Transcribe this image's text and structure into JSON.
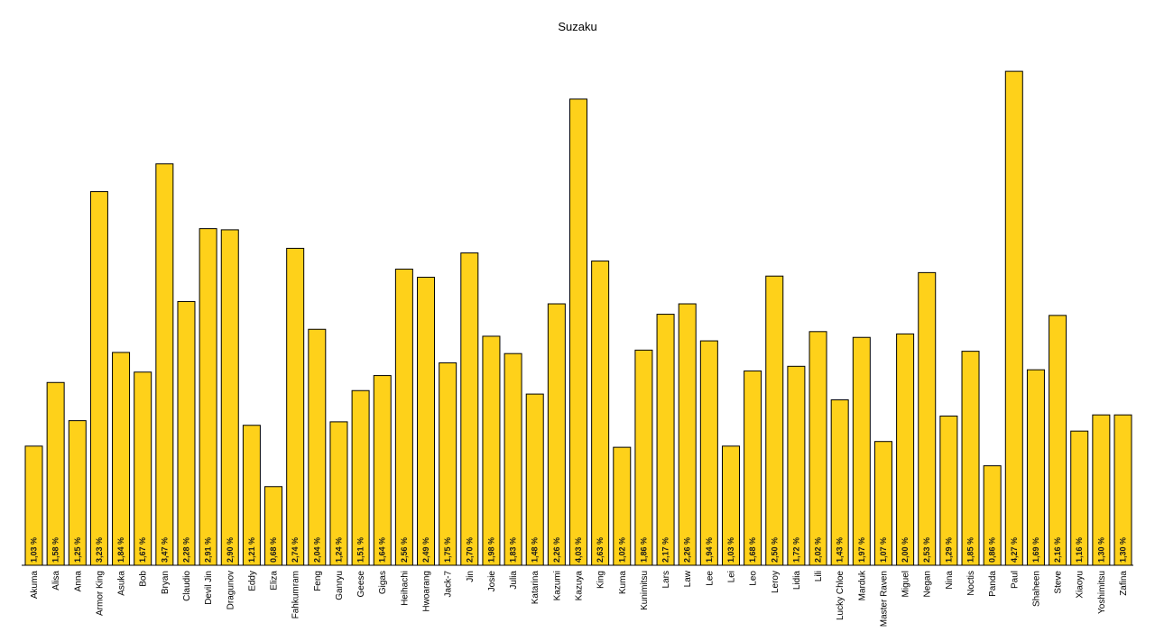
{
  "chart_data": {
    "type": "bar",
    "title": "Suzaku",
    "xlabel": "",
    "ylabel": "",
    "ylim": [
      0,
      4.38
    ],
    "grid": false,
    "bar_color": "#fed11a",
    "bar_edge_color": "#000000",
    "categories": [
      "Akuma",
      "Alisa",
      "Anna",
      "Armor King",
      "Asuka",
      "Bob",
      "Bryan",
      "Claudio",
      "Devil Jin",
      "Dragunov",
      "Eddy",
      "Eliza",
      "Fahkumram",
      "Feng",
      "Ganryu",
      "Geese",
      "Gigas",
      "Heihachi",
      "Hwoarang",
      "Jack-7",
      "Jin",
      "Josie",
      "Julia",
      "Katarina",
      "Kazumi",
      "Kazuya",
      "King",
      "Kuma",
      "Kunimitsu",
      "Lars",
      "Law",
      "Lee",
      "Lei",
      "Leo",
      "Leroy",
      "Lidia",
      "Lili",
      "Lucky Chloe",
      "Marduk",
      "Master Raven",
      "Miguel",
      "Negan",
      "Nina",
      "Noctis",
      "Panda",
      "Paul",
      "Shaheen",
      "Steve",
      "Xiaoyu",
      "Yoshimitsu",
      "Zafina"
    ],
    "values": [
      1.03,
      1.58,
      1.25,
      3.23,
      1.84,
      1.67,
      3.47,
      2.28,
      2.91,
      2.9,
      1.21,
      0.68,
      2.74,
      2.04,
      1.24,
      1.51,
      1.64,
      2.56,
      2.49,
      1.75,
      2.7,
      1.98,
      1.83,
      1.48,
      2.26,
      4.03,
      2.63,
      1.02,
      1.86,
      2.17,
      2.26,
      1.94,
      1.03,
      1.68,
      2.5,
      1.72,
      2.02,
      1.43,
      1.97,
      1.07,
      2.0,
      2.53,
      1.29,
      1.85,
      0.86,
      4.27,
      1.69,
      2.16,
      1.16,
      1.3,
      1.3
    ],
    "labels": [
      "1,03 %",
      "1,58 %",
      "1,25 %",
      "3,23 %",
      "1,84 %",
      "1,67 %",
      "3,47 %",
      "2,28 %",
      "2,91 %",
      "2,90 %",
      "1,21 %",
      "0,68 %",
      "2,74 %",
      "2,04 %",
      "1,24 %",
      "1,51 %",
      "1,64 %",
      "2,56 %",
      "2,49 %",
      "1,75 %",
      "2,70 %",
      "1,98 %",
      "1,83 %",
      "1,48 %",
      "2,26 %",
      "4,03 %",
      "2,63 %",
      "1,02 %",
      "1,86 %",
      "2,17 %",
      "2,26 %",
      "1,94 %",
      "1,03 %",
      "1,68 %",
      "2,50 %",
      "1,72 %",
      "2,02 %",
      "1,43 %",
      "1,97 %",
      "1,07 %",
      "2,00 %",
      "2,53 %",
      "1,29 %",
      "1,85 %",
      "0,86 %",
      "4,27 %",
      "1,69 %",
      "2,16 %",
      "1,16 %",
      "1,30 %",
      "1,30 %"
    ]
  }
}
